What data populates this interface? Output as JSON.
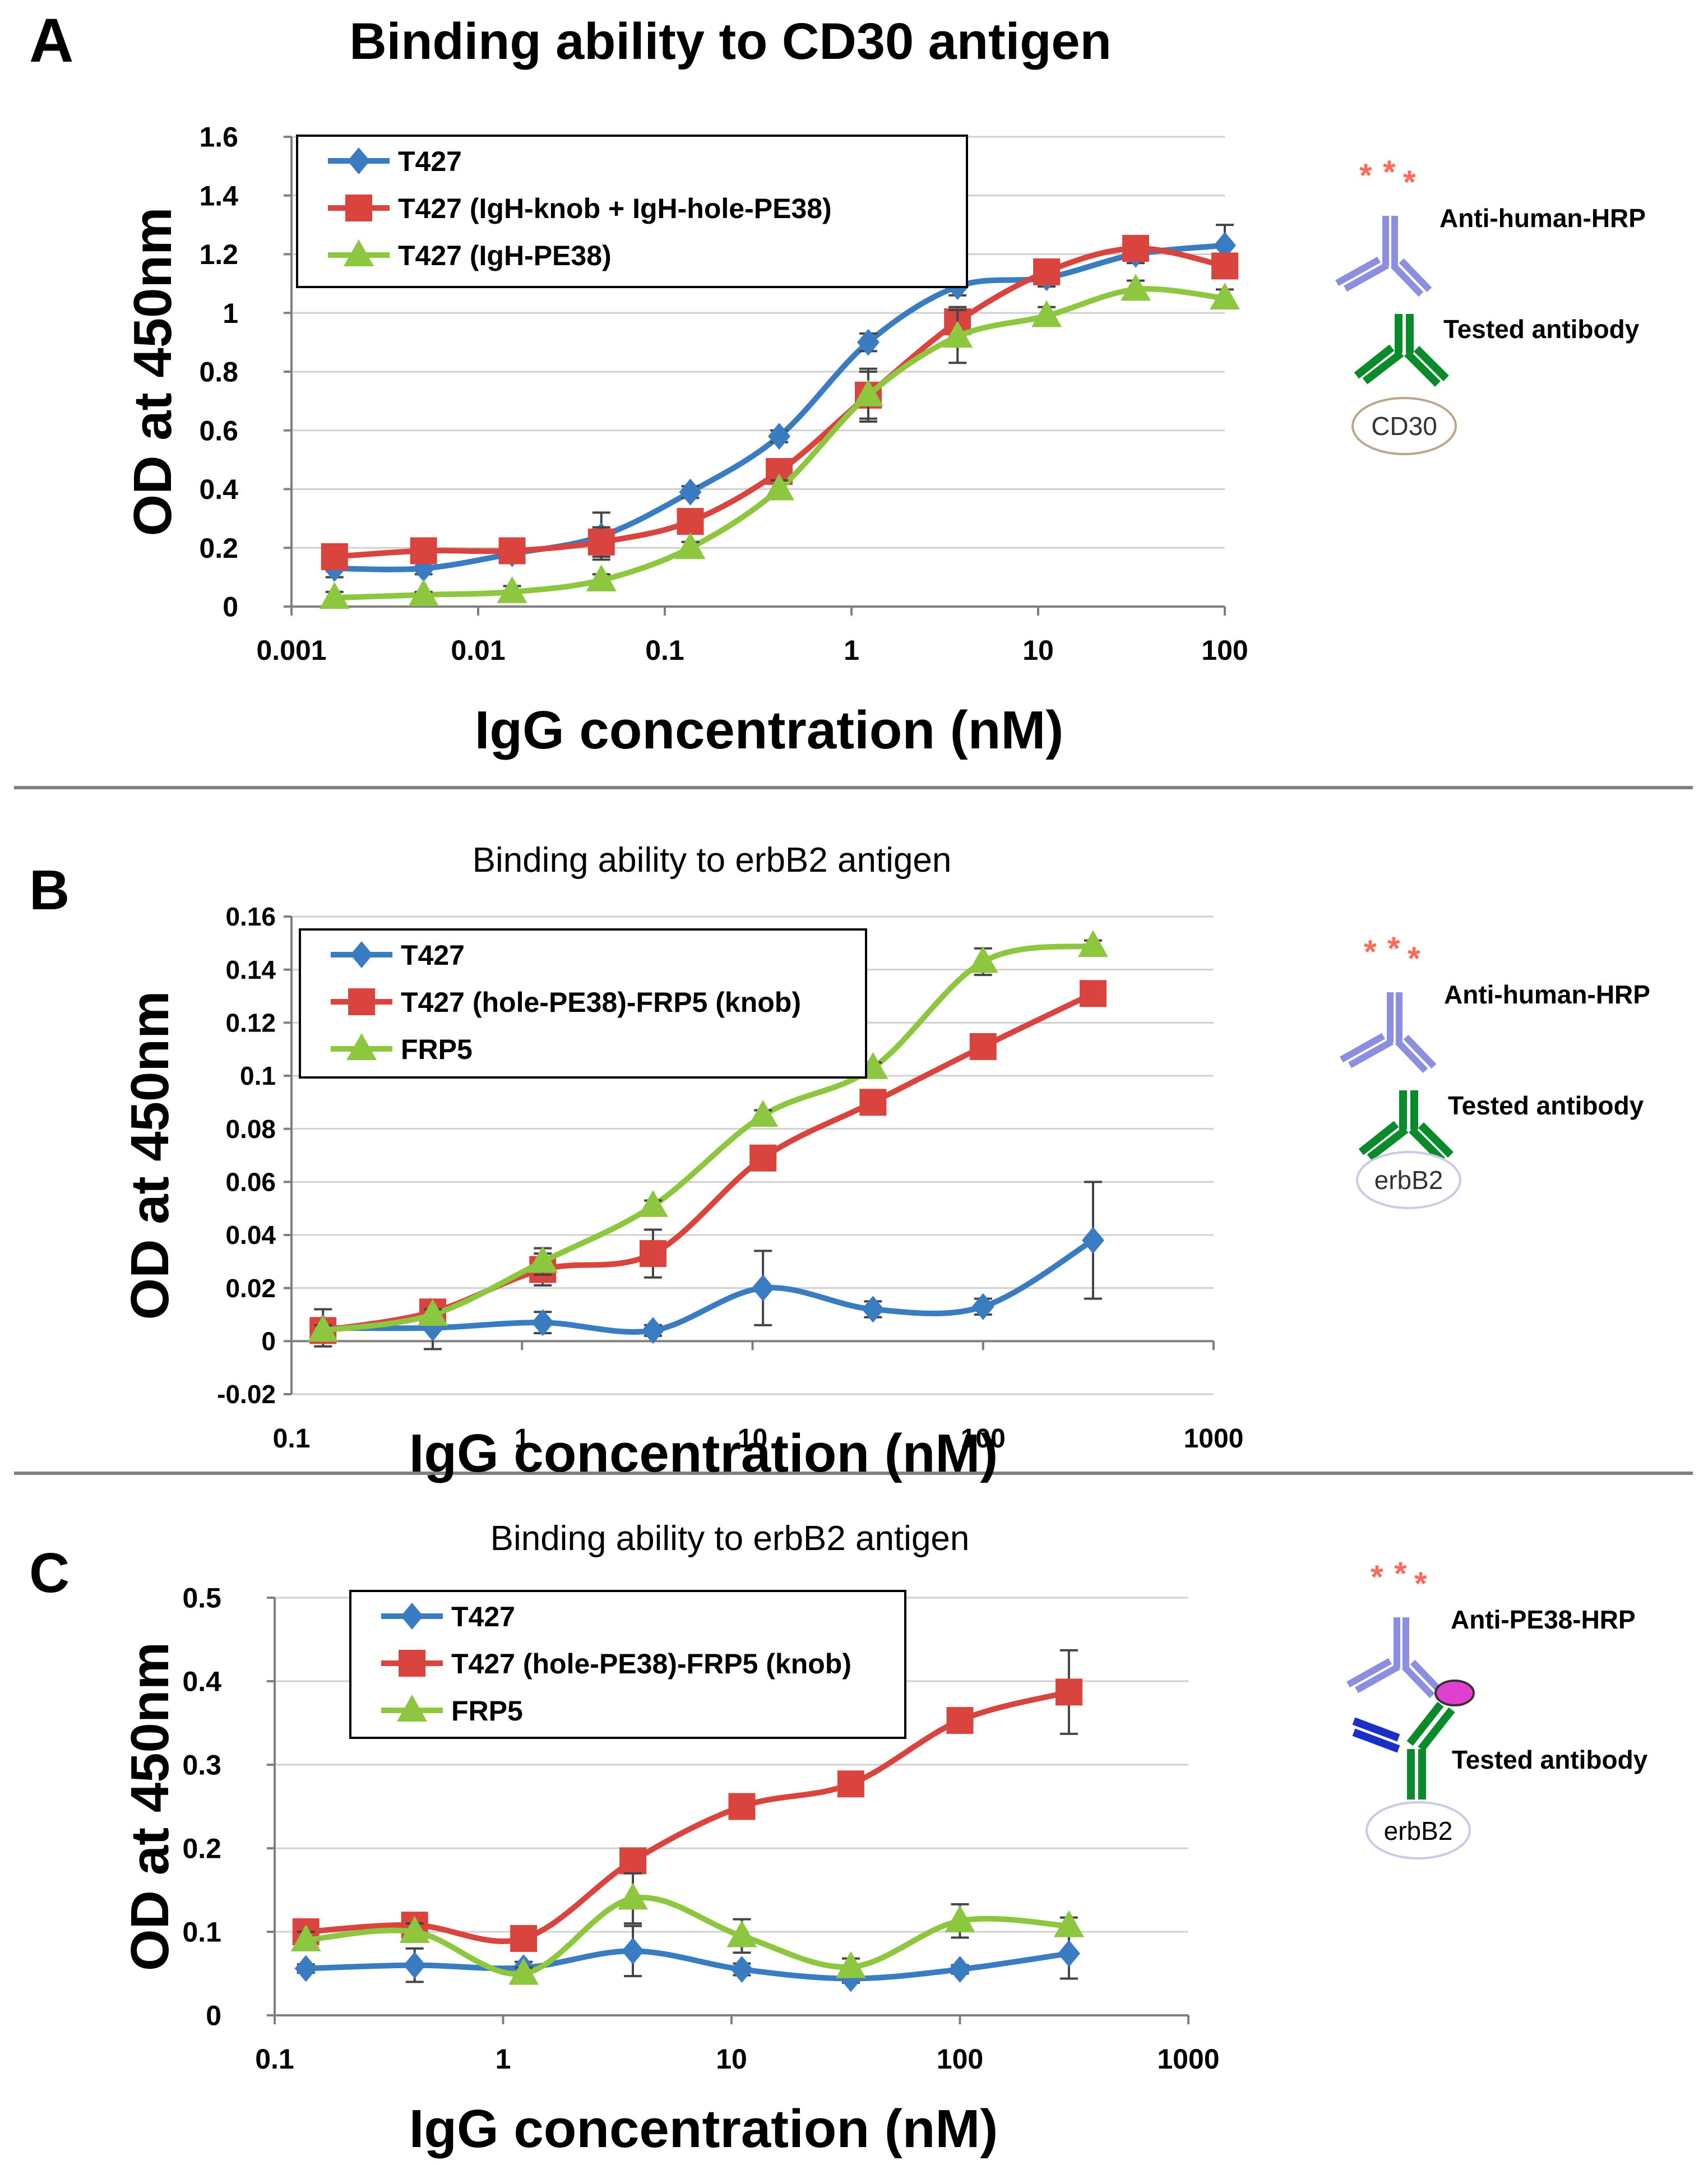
{
  "figure": {
    "colors": {
      "blue": "#3a7cc2",
      "red": "#d9443f",
      "green": "#8dc63f",
      "grid": "#d0d0d0",
      "axis": "#7f7f7f",
      "text": "#000000",
      "divider": "#808080"
    }
  },
  "chart_data": [
    {
      "panel_label": "A",
      "type": "line",
      "title": "Binding ability to CD30 antigen",
      "xlabel": "IgG concentration (nM)",
      "ylabel": "OD at 450nm",
      "xscale": "log",
      "xlim": [
        0.001,
        100
      ],
      "ylim": [
        0,
        1.6
      ],
      "xticks": [
        0.001,
        0.01,
        0.1,
        1,
        10,
        100
      ],
      "xtick_labels": [
        "0.001",
        "0.01",
        "0.1",
        "1",
        "10",
        "100"
      ],
      "yticks": [
        0,
        0.2,
        0.4,
        0.6,
        0.8,
        1,
        1.2,
        1.4,
        1.6
      ],
      "ytick_labels": [
        "0",
        "0.2",
        "0.4",
        "0.6",
        "0.8",
        "1",
        "1.2",
        "1.4",
        "1.6"
      ],
      "grid": true,
      "legend_position": "top-left",
      "x": [
        0.0017,
        0.0051,
        0.0152,
        0.0457,
        0.137,
        0.41,
        1.23,
        3.7,
        11.1,
        33.3,
        100
      ],
      "series": [
        {
          "name": "T427",
          "color": "#3a7cc2",
          "marker": "diamond",
          "values": [
            0.13,
            0.13,
            0.18,
            0.24,
            0.39,
            0.58,
            0.9,
            1.09,
            1.12,
            1.2,
            1.23
          ],
          "errors": [
            0.03,
            0.02,
            0.02,
            0.08,
            0.02,
            0.02,
            0.03,
            0.03,
            0.03,
            0.03,
            0.07
          ]
        },
        {
          "name": "T427 (IgH-knob + IgH-hole-PE38)",
          "color": "#d9443f",
          "marker": "square",
          "values": [
            0.17,
            0.19,
            0.19,
            0.22,
            0.29,
            0.46,
            0.72,
            0.97,
            1.14,
            1.22,
            1.16
          ],
          "errors": [
            0.03,
            0.02,
            0.02,
            0.05,
            0.03,
            0.03,
            0.08,
            0.05,
            0.03,
            0.03,
            0.03
          ]
        },
        {
          "name": "T427 (IgH-PE38)",
          "color": "#8dc63f",
          "marker": "triangle",
          "values": [
            0.03,
            0.04,
            0.05,
            0.09,
            0.2,
            0.4,
            0.72,
            0.92,
            0.99,
            1.08,
            1.05
          ],
          "errors": [
            0.02,
            0.01,
            0.02,
            0.02,
            0.02,
            0.03,
            0.09,
            0.09,
            0.03,
            0.03,
            0.03
          ]
        }
      ],
      "diagram": {
        "top_label": "Anti-human-HRP",
        "middle_label": "Tested antibody",
        "antigen_label": "CD30"
      }
    },
    {
      "panel_label": "B",
      "type": "line",
      "title": "Binding ability to erbB2 antigen",
      "xlabel": "IgG concentration (nM)",
      "ylabel": "OD at 450nm",
      "xscale": "log",
      "xlim": [
        0.1,
        1000
      ],
      "ylim": [
        -0.02,
        0.16
      ],
      "xticks": [
        0.1,
        1,
        10,
        100,
        1000
      ],
      "xtick_labels": [
        "0.1",
        "1",
        "10",
        "100",
        "1000"
      ],
      "yticks": [
        -0.02,
        0,
        0.02,
        0.04,
        0.06,
        0.08,
        0.1,
        0.12,
        0.14,
        0.16
      ],
      "ytick_labels": [
        "-0.02",
        "0",
        "0.02",
        "0.04",
        "0.06",
        "0.08",
        "0.1",
        "0.12",
        "0.14",
        "0.16"
      ],
      "grid": true,
      "legend_position": "top-left",
      "x": [
        0.137,
        0.41,
        1.23,
        3.7,
        11.1,
        33.3,
        100,
        300
      ],
      "series": [
        {
          "name": "T427",
          "color": "#3a7cc2",
          "marker": "diamond",
          "values": [
            0.005,
            0.005,
            0.007,
            0.004,
            0.02,
            0.012,
            0.013,
            0.038
          ],
          "errors": [
            0.007,
            0.008,
            0.004,
            0.002,
            0.014,
            0.003,
            0.003,
            0.022
          ]
        },
        {
          "name": "T427 (hole-PE38)-FRP5 (knob)",
          "color": "#d9443f",
          "marker": "square",
          "values": [
            0.004,
            0.011,
            0.027,
            0.033,
            0.069,
            0.09,
            0.111,
            0.131
          ],
          "errors": [
            0.002,
            0.002,
            0.006,
            0.009,
            0.002,
            0.002,
            0.002,
            0.002
          ]
        },
        {
          "name": "FRP5",
          "color": "#8dc63f",
          "marker": "triangle",
          "values": [
            0.004,
            0.01,
            0.03,
            0.051,
            0.085,
            0.103,
            0.143,
            0.149
          ],
          "errors": [
            0.002,
            0.002,
            0.005,
            0.002,
            0.002,
            0.002,
            0.005,
            0.002
          ]
        }
      ],
      "diagram": {
        "top_label": "Anti-human-HRP",
        "middle_label": "Tested antibody",
        "antigen_label": "erbB2"
      }
    },
    {
      "panel_label": "C",
      "type": "line",
      "title": "Binding ability to erbB2 antigen",
      "xlabel": "IgG concentration (nM)",
      "ylabel": "OD at 450nm",
      "xscale": "log",
      "xlim": [
        0.1,
        1000
      ],
      "ylim": [
        0,
        0.5
      ],
      "xticks": [
        0.1,
        1,
        10,
        100,
        1000
      ],
      "xtick_labels": [
        "0.1",
        "1",
        "10",
        "100",
        "1000"
      ],
      "yticks": [
        0,
        0.1,
        0.2,
        0.3,
        0.4,
        0.5
      ],
      "ytick_labels": [
        "0",
        "0.1",
        "0.2",
        "0.3",
        "0.4",
        "0.5"
      ],
      "grid": true,
      "legend_position": "top-left",
      "x": [
        0.137,
        0.41,
        1.23,
        3.7,
        11.1,
        33.3,
        100,
        300
      ],
      "series": [
        {
          "name": "T427",
          "color": "#3a7cc2",
          "marker": "diamond",
          "values": [
            0.056,
            0.06,
            0.057,
            0.077,
            0.055,
            0.044,
            0.055,
            0.074
          ],
          "errors": [
            0.005,
            0.02,
            0.007,
            0.03,
            0.007,
            0.005,
            0.005,
            0.03
          ]
        },
        {
          "name": "T427 (hole-PE38)-FRP5 (knob)",
          "color": "#d9443f",
          "marker": "square",
          "values": [
            0.1,
            0.108,
            0.092,
            0.185,
            0.25,
            0.277,
            0.353,
            0.387
          ],
          "errors": [
            0.005,
            0.006,
            0.005,
            0.008,
            0.006,
            0.006,
            0.006,
            0.05
          ]
        },
        {
          "name": "FRP5",
          "color": "#8dc63f",
          "marker": "triangle",
          "values": [
            0.09,
            0.1,
            0.05,
            0.14,
            0.095,
            0.058,
            0.113,
            0.107
          ],
          "errors": [
            0.01,
            0.01,
            0.007,
            0.03,
            0.02,
            0.01,
            0.02,
            0.01
          ]
        }
      ],
      "diagram": {
        "top_label": "Anti-PE38-HRP",
        "middle_label": "Tested antibody",
        "antigen_label": "erbB2"
      }
    }
  ]
}
